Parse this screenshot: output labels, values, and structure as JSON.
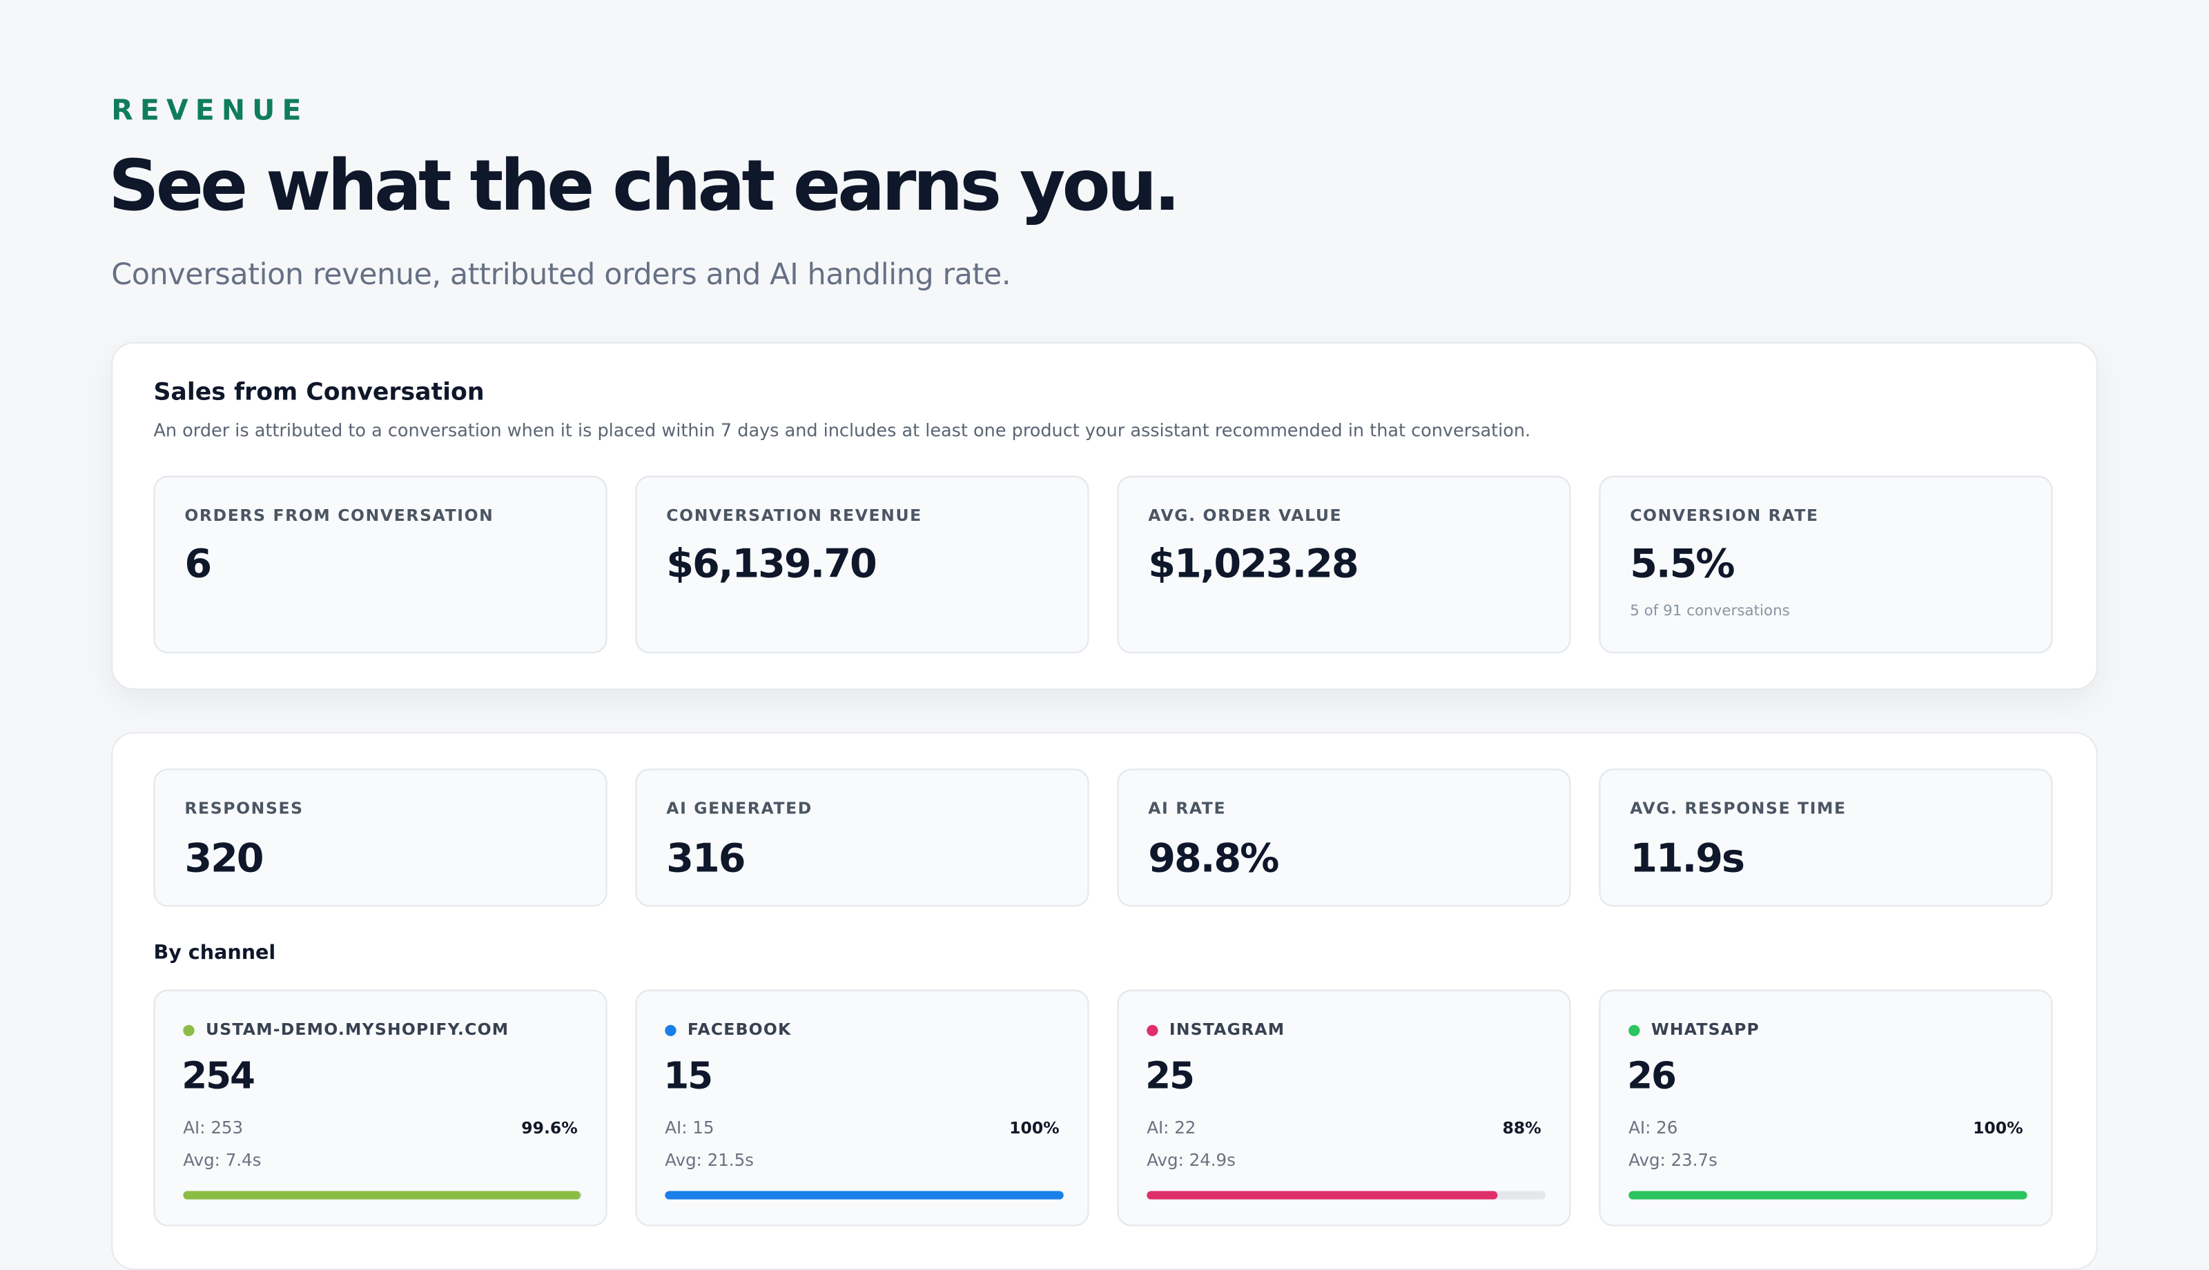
{
  "eyebrow": "REVENUE",
  "title": "See what the chat earns you.",
  "subtitle": "Conversation revenue, attributed orders and AI handling rate.",
  "sales": {
    "title": "Sales from Conversation",
    "description": "An order is attributed to a conversation when it is placed within 7 days and includes at least one product your assistant recommended in that conversation.",
    "stats": [
      {
        "label": "ORDERS FROM CONVERSATION",
        "value": 6
      },
      {
        "label": "CONVERSATION REVENUE",
        "value": "$6,139.70"
      },
      {
        "label": "AVG. ORDER VALUE",
        "value": "$1,023.28"
      },
      {
        "label": "CONVERSION RATE",
        "value": "5.5%",
        "note": "5 of 91 conversations"
      }
    ]
  },
  "activity": {
    "stats": [
      {
        "label": "RESPONSES",
        "value": 320
      },
      {
        "label": "AI GENERATED",
        "value": 316
      },
      {
        "label": "AI RATE",
        "value": "98.8%"
      },
      {
        "label": "AVG. RESPONSE TIME",
        "value": "11.9s"
      }
    ]
  },
  "channels": {
    "title": "By channel",
    "items": [
      {
        "name": "USTAM-DEMO.MYSHOPIFY.COM",
        "color": "#8bbd45",
        "count": 254,
        "ai": "AI: 253",
        "share": {
          "value": 99.6,
          "label": "99.6%"
        },
        "avg": "Avg: 7.4s"
      },
      {
        "name": "FACEBOOK",
        "color": "#1a7fe8",
        "count": 15,
        "ai": "AI: 15",
        "share": {
          "value": 100,
          "label": "100%"
        },
        "avg": "Avg: 21.5s"
      },
      {
        "name": "INSTAGRAM",
        "color": "#de2f6a",
        "count": 25,
        "ai": "AI: 22",
        "share": {
          "value": 88,
          "label": "88%"
        },
        "avg": "Avg: 24.9s"
      },
      {
        "name": "WHATSAPP",
        "color": "#2cc45f",
        "count": 26,
        "ai": "AI: 26",
        "share": {
          "value": 100,
          "label": "100%"
        },
        "avg": "Avg: 23.7s"
      }
    ]
  }
}
